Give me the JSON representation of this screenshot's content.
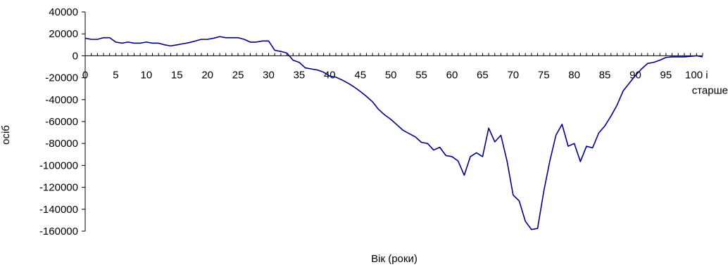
{
  "chart_data": {
    "type": "line",
    "title": "",
    "xlabel": "Вік (роки)",
    "ylabel": "осіб",
    "xlim": [
      0,
      101
    ],
    "ylim": [
      -160000,
      40000
    ],
    "y_ticks": [
      40000,
      20000,
      0,
      -20000,
      -40000,
      -60000,
      -80000,
      -100000,
      -120000,
      -140000,
      -160000
    ],
    "x_tick_labels": [
      "0",
      "5",
      "10",
      "15",
      "20",
      "25",
      "30",
      "35",
      "40",
      "45",
      "50",
      "55",
      "60",
      "65",
      "70",
      "75",
      "80",
      "85",
      "90",
      "95",
      "100 і"
    ],
    "x_tick_label_extra": "старше",
    "grid": false,
    "legend": "none",
    "colors": {
      "line": "#000080",
      "axis": "#000000"
    },
    "series": [
      {
        "values": [
          16000,
          15000,
          15000,
          16500,
          16500,
          12500,
          11500,
          12500,
          11500,
          11500,
          12500,
          11500,
          11500,
          10000,
          9000,
          10000,
          11000,
          12000,
          13500,
          15000,
          15000,
          16000,
          17500,
          16500,
          16500,
          16500,
          15000,
          12500,
          12500,
          13500,
          13500,
          5000,
          4000,
          2500,
          -4000,
          -6000,
          -11000,
          -12000,
          -13000,
          -15000,
          -18500,
          -19500,
          -22000,
          -25000,
          -28500,
          -32500,
          -37000,
          -42000,
          -49000,
          -54000,
          -58000,
          -63000,
          -68000,
          -71000,
          -74000,
          -79000,
          -80000,
          -86000,
          -83500,
          -91000,
          -92000,
          -96000,
          -109000,
          -92000,
          -88500,
          -92000,
          -66000,
          -78500,
          -72500,
          -96000,
          -127000,
          -132500,
          -151000,
          -158500,
          -157500,
          -124000,
          -96000,
          -72500,
          -62500,
          -82500,
          -80000,
          -96500,
          -82500,
          -84000,
          -70500,
          -64000,
          -55000,
          -45000,
          -32000,
          -25000,
          -18000,
          -12000,
          -7000,
          -6000,
          -4000,
          -1500,
          -1000,
          -1000,
          -1000,
          -500,
          0,
          -1000
        ]
      }
    ]
  }
}
